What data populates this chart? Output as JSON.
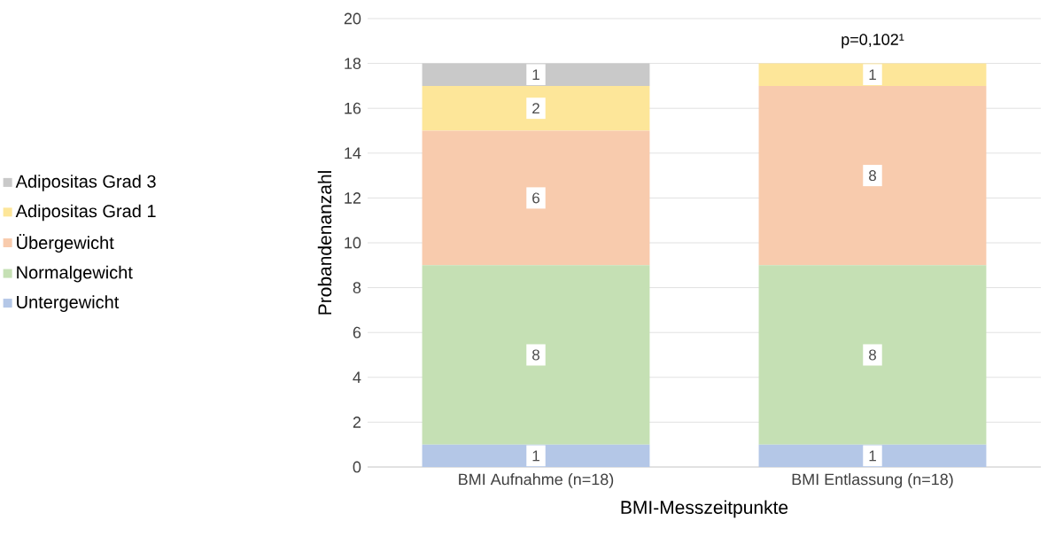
{
  "chart_data": {
    "type": "bar",
    "stacked": true,
    "xlabel": "BMI-Messzeitpunkte",
    "ylabel": "Probandenanzahl",
    "categories": [
      "BMI Aufnahme (n=18)",
      "BMI Entlassung (n=18)"
    ],
    "series": [
      {
        "name": "Untergewicht",
        "color": "#b4c7e7",
        "values": [
          1,
          1
        ],
        "value_labels": [
          "1",
          "1"
        ]
      },
      {
        "name": "Normalgewicht",
        "color": "#c5e0b4",
        "values": [
          8,
          8
        ],
        "value_labels": [
          "8",
          "8"
        ]
      },
      {
        "name": "Übergewicht",
        "color": "#f8cbad",
        "values": [
          6,
          8
        ],
        "value_labels": [
          "6",
          "8"
        ]
      },
      {
        "name": "Adipositas Grad 1",
        "color": "#fde699",
        "values": [
          2,
          1
        ],
        "value_labels": [
          "2",
          "1"
        ]
      },
      {
        "name": "Adipositas Grad 3",
        "color": "#c9c9c9",
        "values": [
          1,
          0
        ],
        "value_labels": [
          "1",
          null
        ]
      }
    ],
    "ylim": [
      0,
      20
    ],
    "yticks": [
      0,
      2,
      4,
      6,
      8,
      10,
      12,
      14,
      16,
      18,
      20
    ],
    "grid": "y",
    "legend": "left",
    "annotations": [
      "p=0,102¹"
    ]
  }
}
